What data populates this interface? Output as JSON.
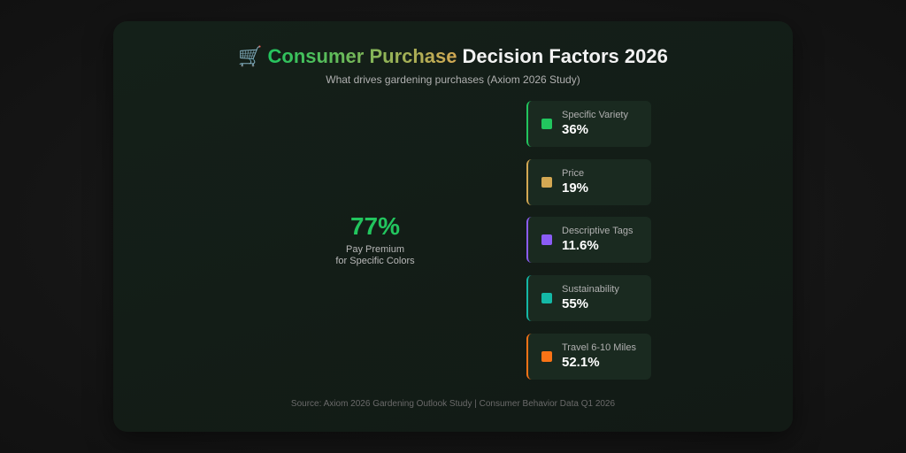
{
  "header": {
    "title_icon": "🛒",
    "title_highlight": "Consumer Purchase",
    "title_rest": "Decision Factors 2026",
    "subtitle": "What drives gardening purchases (Axiom 2026 Study)"
  },
  "highlight": {
    "value": "77%",
    "label": "Pay Premium\nfor Specific Colors"
  },
  "factors": [
    {
      "label": "Specific Variety",
      "value": "36%",
      "color": "#22c55e"
    },
    {
      "label": "Price",
      "value": "19%",
      "color": "#d4a853"
    },
    {
      "label": "Descriptive Tags",
      "value": "11.6%",
      "color": "#8b5cf6"
    },
    {
      "label": "Sustainability",
      "value": "55%",
      "color": "#14b8a6"
    },
    {
      "label": "Travel 6-10 Miles",
      "value": "52.1%",
      "color": "#f97316"
    }
  ],
  "footer": "Source: Axiom 2026 Gardening Outlook Study | Consumer Behavior Data Q1 2026"
}
